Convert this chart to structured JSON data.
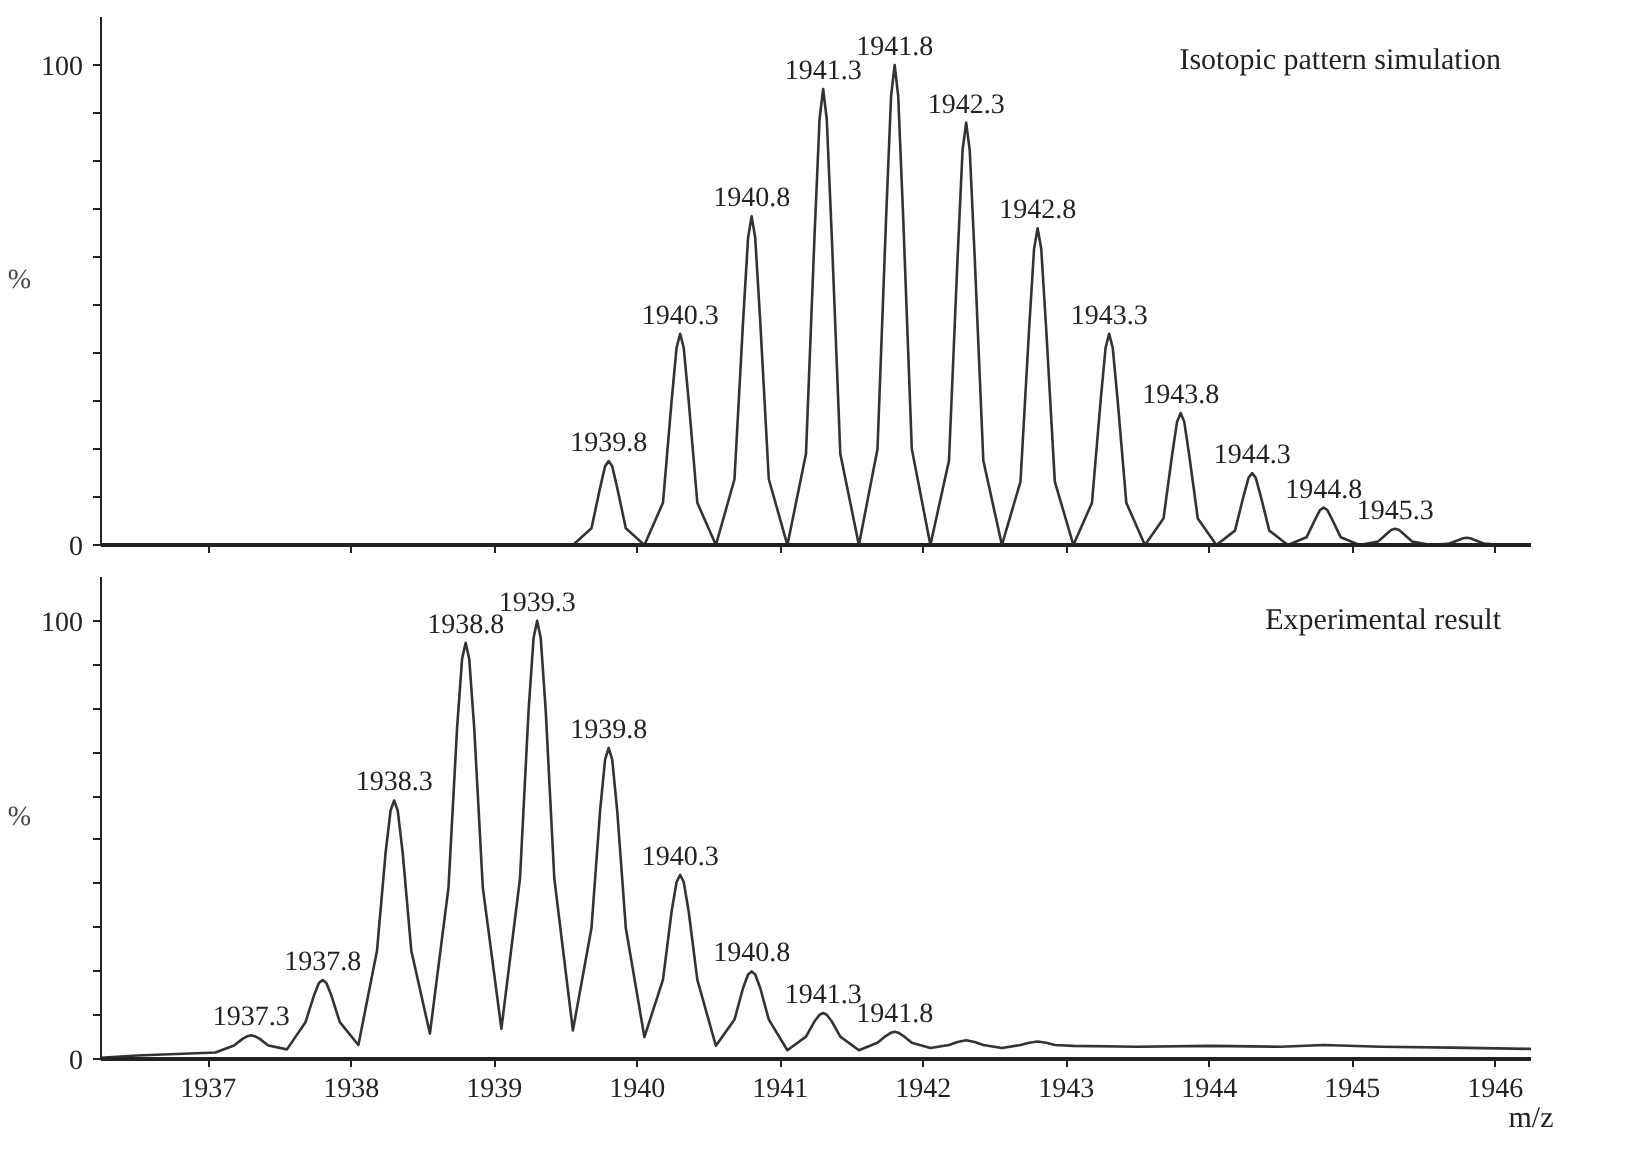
{
  "chart_data": [
    {
      "type": "line",
      "title": "Isotopic pattern simulation",
      "ylabel": "%",
      "xlim": [
        1936.25,
        1946.25
      ],
      "ylim": [
        0,
        110
      ],
      "tick_labels": "y",
      "grid": false,
      "marker": "none",
      "line_style": "solid",
      "xticks": [
        1937,
        1938,
        1939,
        1940,
        1941,
        1942,
        1943,
        1944,
        1945,
        1946
      ],
      "yticks": [
        0,
        {
          "value": 10,
          "label": null
        },
        {
          "value": 20,
          "label": null
        },
        {
          "value": 30,
          "label": null
        },
        {
          "value": 40,
          "label": null
        },
        {
          "value": 50,
          "label": null
        },
        {
          "value": 60,
          "label": null
        },
        {
          "value": 70,
          "label": null
        },
        {
          "value": 80,
          "label": null
        },
        {
          "value": 90,
          "label": null
        },
        100
      ],
      "series": [
        {
          "color": "#333333",
          "x": [
            1936.25,
            1939.55,
            1939.68,
            1939.74,
            1939.775,
            1939.8,
            1939.825,
            1939.86,
            1939.92,
            1940.05,
            1940.18,
            1940.24,
            1940.275,
            1940.3,
            1940.325,
            1940.36,
            1940.42,
            1940.55,
            1940.68,
            1940.74,
            1940.775,
            1940.8,
            1940.825,
            1940.86,
            1940.92,
            1941.05,
            1941.18,
            1941.24,
            1941.275,
            1941.3,
            1941.325,
            1941.36,
            1941.42,
            1941.55,
            1941.68,
            1941.74,
            1941.775,
            1941.8,
            1941.825,
            1941.86,
            1941.92,
            1942.05,
            1942.18,
            1942.24,
            1942.275,
            1942.3,
            1942.325,
            1942.36,
            1942.42,
            1942.55,
            1942.68,
            1942.74,
            1942.775,
            1942.8,
            1942.825,
            1942.86,
            1942.92,
            1943.05,
            1943.18,
            1943.24,
            1943.275,
            1943.3,
            1943.325,
            1943.36,
            1943.42,
            1943.55,
            1943.68,
            1943.74,
            1943.775,
            1943.8,
            1943.825,
            1943.86,
            1943.92,
            1944.05,
            1944.18,
            1944.24,
            1944.275,
            1944.3,
            1944.325,
            1944.36,
            1944.42,
            1944.55,
            1944.68,
            1944.74,
            1944.775,
            1944.8,
            1944.825,
            1944.86,
            1944.92,
            1945.05,
            1945.18,
            1945.24,
            1945.275,
            1945.3,
            1945.325,
            1945.36,
            1945.42,
            1945.55,
            1945.68,
            1945.74,
            1945.775,
            1945.8,
            1945.825,
            1945.86,
            1945.92,
            1946.05,
            1946.25
          ],
          "values": [
            0,
            0,
            3.5,
            11.9,
            16.4,
            17.5,
            16.4,
            11.9,
            3.5,
            0,
            8.8,
            29.9,
            41.1,
            44,
            41.1,
            29.9,
            8.8,
            0,
            13.7,
            46.6,
            64,
            68.5,
            64,
            46.6,
            13.7,
            0,
            19,
            64.6,
            88.8,
            95,
            88.8,
            64.6,
            19,
            0,
            20,
            68,
            93.5,
            100,
            93.5,
            68,
            20,
            0,
            17.6,
            59.8,
            82.3,
            88,
            82.3,
            59.8,
            17.6,
            0,
            13.2,
            44.9,
            61.7,
            66,
            61.7,
            44.9,
            13.2,
            0,
            8.8,
            29.9,
            41.1,
            44,
            41.1,
            29.9,
            8.8,
            0,
            5.5,
            18.7,
            25.7,
            27.5,
            25.7,
            18.7,
            5.5,
            0,
            3,
            10.2,
            14,
            15,
            14,
            10.2,
            3,
            0,
            1.6,
            5.3,
            7.3,
            7.8,
            7.3,
            5.3,
            1.6,
            0,
            0.7,
            2.3,
            3.2,
            3.4,
            3.2,
            2.3,
            0.7,
            0,
            0.3,
            1,
            1.4,
            1.5,
            1.4,
            1,
            0.3,
            0,
            0
          ]
        }
      ],
      "annotations": [
        {
          "text": "1939.8",
          "x": 1939.8,
          "y": 17.5
        },
        {
          "text": "1940.3",
          "x": 1940.3,
          "y": 44
        },
        {
          "text": "1940.8",
          "x": 1940.8,
          "y": 68.5
        },
        {
          "text": "1941.3",
          "x": 1941.3,
          "y": 95
        },
        {
          "text": "1941.8",
          "x": 1941.8,
          "y": 100
        },
        {
          "text": "1942.3",
          "x": 1942.3,
          "y": 88
        },
        {
          "text": "1942.8",
          "x": 1942.8,
          "y": 66
        },
        {
          "text": "1943.3",
          "x": 1943.3,
          "y": 44
        },
        {
          "text": "1943.8",
          "x": 1943.8,
          "y": 27.5
        },
        {
          "text": "1944.3",
          "x": 1944.3,
          "y": 15
        },
        {
          "text": "1944.8",
          "x": 1944.8,
          "y": 7.8
        },
        {
          "text": "1945.3",
          "x": 1945.3,
          "y": 3.4
        }
      ]
    },
    {
      "type": "line",
      "title": "Experimental result",
      "ylabel": "%",
      "xlabel": "m/z",
      "xlim": [
        1936.25,
        1946.25
      ],
      "ylim": [
        0,
        110
      ],
      "grid": false,
      "marker": "none",
      "line_style": "solid",
      "xticks": [
        1937,
        1938,
        1939,
        1940,
        1941,
        1942,
        1943,
        1944,
        1945,
        1946
      ],
      "yticks": [
        0,
        {
          "value": 10,
          "label": null
        },
        {
          "value": 20,
          "label": null
        },
        {
          "value": 30,
          "label": null
        },
        {
          "value": 40,
          "label": null
        },
        {
          "value": 50,
          "label": null
        },
        {
          "value": 60,
          "label": null
        },
        {
          "value": 70,
          "label": null
        },
        {
          "value": 80,
          "label": null
        },
        {
          "value": 90,
          "label": null
        },
        100
      ],
      "series": [
        {
          "color": "#333333",
          "x": [
            1936.25,
            1936.5,
            1937.05,
            1937.18,
            1937.24,
            1937.275,
            1937.3,
            1937.325,
            1937.36,
            1937.42,
            1937.55,
            1937.68,
            1937.74,
            1937.775,
            1937.8,
            1937.825,
            1937.86,
            1937.92,
            1938.05,
            1938.18,
            1938.24,
            1938.275,
            1938.3,
            1938.325,
            1938.36,
            1938.42,
            1938.55,
            1938.68,
            1938.74,
            1938.775,
            1938.8,
            1938.825,
            1938.86,
            1938.92,
            1939.05,
            1939.18,
            1939.24,
            1939.275,
            1939.3,
            1939.325,
            1939.36,
            1939.42,
            1939.55,
            1939.68,
            1939.74,
            1939.775,
            1939.8,
            1939.825,
            1939.86,
            1939.92,
            1940.05,
            1940.18,
            1940.24,
            1940.275,
            1940.3,
            1940.325,
            1940.36,
            1940.42,
            1940.55,
            1940.68,
            1940.74,
            1940.775,
            1940.8,
            1940.825,
            1940.86,
            1940.92,
            1941.05,
            1941.18,
            1941.24,
            1941.275,
            1941.3,
            1941.325,
            1941.36,
            1941.42,
            1941.55,
            1941.68,
            1941.74,
            1941.775,
            1941.8,
            1941.825,
            1941.86,
            1941.92,
            1942.05,
            1942.18,
            1942.24,
            1942.3,
            1942.36,
            1942.42,
            1942.55,
            1942.68,
            1942.74,
            1942.8,
            1942.86,
            1942.92,
            1943.05,
            1943.5,
            1944,
            1944.5,
            1944.8,
            1945.2,
            1945.7,
            1946.25
          ],
          "values": [
            0.3,
            0.8,
            1.5,
            3.1,
            4.6,
            5.2,
            5.4,
            5.2,
            4.6,
            3.1,
            2.2,
            8.4,
            14.6,
            17.4,
            18,
            17.4,
            14.6,
            8.4,
            3.2,
            24.7,
            47,
            56.7,
            59,
            56.7,
            47,
            24.7,
            5.8,
            39.1,
            75.5,
            91.3,
            95,
            91.3,
            75.5,
            39.1,
            6.9,
            41.2,
            79.5,
            96.1,
            100,
            96.1,
            79.5,
            41.2,
            6.5,
            29.9,
            56.6,
            68.3,
            71,
            68.3,
            56.6,
            29.9,
            5,
            18.1,
            33.6,
            40.4,
            42,
            40.4,
            33.6,
            18.1,
            3,
            9,
            16.2,
            19.3,
            20,
            19.3,
            16.2,
            9,
            2,
            5.1,
            8.6,
            10.1,
            10.5,
            10.1,
            8.6,
            5.1,
            2,
            3.7,
            5.3,
            6,
            6.2,
            6,
            5.3,
            3.7,
            2.5,
            3.2,
            3.9,
            4.3,
            3.9,
            3.2,
            2.5,
            3.2,
            3.7,
            4,
            3.7,
            3.2,
            3,
            2.8,
            3,
            2.8,
            3.2,
            2.8,
            2.6,
            2.3
          ]
        }
      ],
      "annotations": [
        {
          "text": "1937.3",
          "x": 1937.3,
          "y": 5.4
        },
        {
          "text": "1937.8",
          "x": 1937.8,
          "y": 18
        },
        {
          "text": "1938.3",
          "x": 1938.3,
          "y": 59
        },
        {
          "text": "1938.8",
          "x": 1938.8,
          "y": 95
        },
        {
          "text": "1939.3",
          "x": 1939.3,
          "y": 100
        },
        {
          "text": "1939.8",
          "x": 1939.8,
          "y": 71
        },
        {
          "text": "1940.3",
          "x": 1940.3,
          "y": 42
        },
        {
          "text": "1940.8",
          "x": 1940.8,
          "y": 20
        },
        {
          "text": "1941.3",
          "x": 1941.3,
          "y": 10.5
        },
        {
          "text": "1941.8",
          "x": 1941.8,
          "y": 6.2
        }
      ]
    }
  ]
}
